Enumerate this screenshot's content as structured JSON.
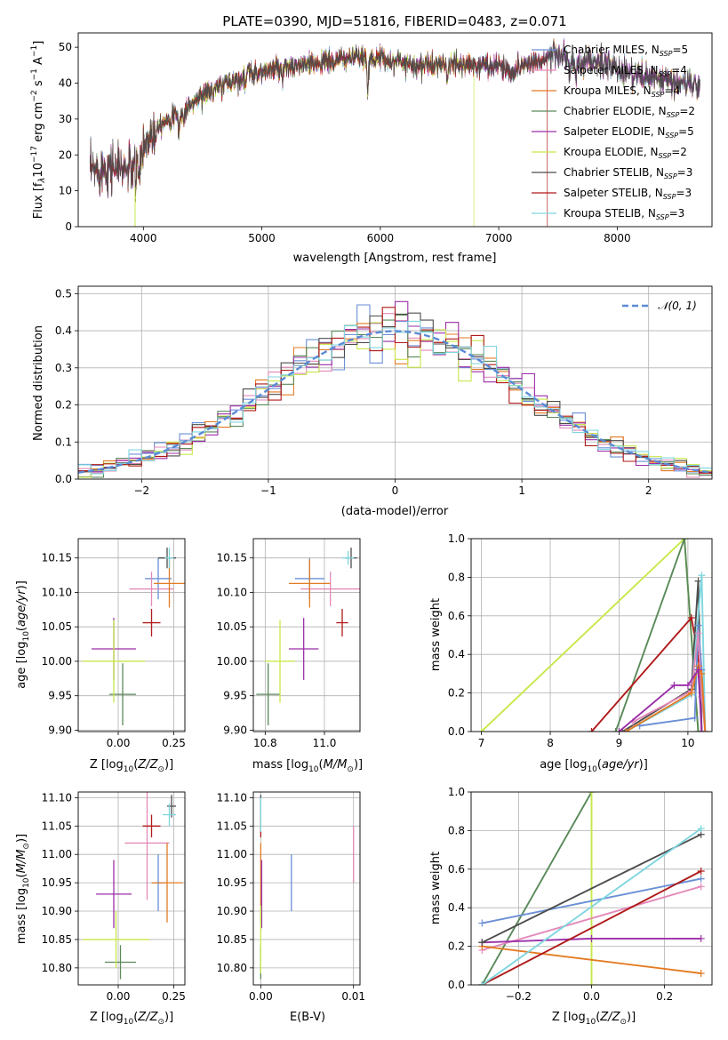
{
  "figure_title": "PLATE=0390, MJD=51816, FIBERID=0483, z=0.071",
  "colors": {
    "chabrier_miles": "#6a8fd6",
    "salpeter_miles": "#e389b9",
    "kroupa_miles": "#e37b22",
    "chabrier_elodie": "#5a8a5a",
    "salpeter_elodie": "#9b2fa8",
    "kroupa_elodie": "#c6e84a",
    "chabrier_stelib": "#4d4d4d",
    "salpeter_stelib": "#b01a1a",
    "kroupa_stelib": "#7fd6df",
    "normal_curve": "#5b8bd6"
  },
  "legend": [
    {
      "key": "chabrier_miles",
      "label": "Chabrier MILES, N",
      "n": "=5"
    },
    {
      "key": "salpeter_miles",
      "label": "Salpeter MILES, N",
      "n": "=4"
    },
    {
      "key": "kroupa_miles",
      "label": "Kroupa MILES, N",
      "n": "=4"
    },
    {
      "key": "chabrier_elodie",
      "label": "Chabrier ELODIE, N",
      "n": "=2"
    },
    {
      "key": "salpeter_elodie",
      "label": "Salpeter ELODIE, N",
      "n": "=5"
    },
    {
      "key": "kroupa_elodie",
      "label": "Kroupa ELODIE, N",
      "n": "=2"
    },
    {
      "key": "chabrier_stelib",
      "label": "Chabrier STELIB, N",
      "n": "=3"
    },
    {
      "key": "salpeter_stelib",
      "label": "Salpeter STELIB, N",
      "n": "=3"
    },
    {
      "key": "kroupa_stelib",
      "label": "Kroupa STELIB, N",
      "n": "=3"
    }
  ],
  "legend_subscript": "SSP",
  "chart_data": [
    {
      "id": "spectrum",
      "type": "line",
      "xlabel": "wavelength [Angstrom, rest frame]",
      "ylabel": "Flux [f_λ 10^-17 erg cm^-2 s^-1 A^-1]",
      "xlim": [
        3450,
        8800
      ],
      "ylim": [
        0,
        54
      ],
      "xticks": [
        4000,
        5000,
        6000,
        7000,
        8000
      ],
      "yticks": [
        0,
        10,
        20,
        30,
        40,
        50
      ],
      "continuum": [
        [
          3550,
          15
        ],
        [
          3700,
          17
        ],
        [
          3850,
          16
        ],
        [
          3950,
          17
        ],
        [
          4000,
          22
        ],
        [
          4100,
          28
        ],
        [
          4200,
          30
        ],
        [
          4300,
          31
        ],
        [
          4400,
          34
        ],
        [
          4500,
          37
        ],
        [
          4600,
          38
        ],
        [
          4700,
          40
        ],
        [
          4800,
          41
        ],
        [
          4900,
          43
        ],
        [
          5000,
          43
        ],
        [
          5100,
          44
        ],
        [
          5200,
          44
        ],
        [
          5300,
          45
        ],
        [
          5400,
          45
        ],
        [
          5500,
          46
        ],
        [
          5600,
          46
        ],
        [
          5700,
          47
        ],
        [
          5800,
          47
        ],
        [
          5900,
          47
        ],
        [
          6000,
          47
        ],
        [
          6100,
          46
        ],
        [
          6200,
          46
        ],
        [
          6300,
          45
        ],
        [
          6400,
          45
        ],
        [
          6500,
          45
        ],
        [
          6600,
          45
        ],
        [
          6700,
          45
        ],
        [
          6800,
          45
        ],
        [
          6900,
          45
        ],
        [
          7000,
          45
        ],
        [
          7100,
          43
        ],
        [
          7200,
          45
        ],
        [
          7300,
          46
        ],
        [
          7400,
          47
        ],
        [
          7500,
          48
        ],
        [
          7600,
          46
        ],
        [
          7700,
          45
        ],
        [
          7800,
          46
        ],
        [
          7900,
          45
        ],
        [
          8000,
          44
        ],
        [
          8100,
          43
        ],
        [
          8200,
          42
        ],
        [
          8300,
          41
        ],
        [
          8400,
          41
        ],
        [
          8500,
          40
        ],
        [
          8600,
          40
        ],
        [
          8700,
          39
        ]
      ],
      "absorption": [
        [
          3934,
          5
        ],
        [
          3969,
          6
        ],
        [
          4102,
          4
        ],
        [
          4300,
          5
        ],
        [
          4340,
          3
        ],
        [
          4861,
          3
        ],
        [
          5175,
          4
        ],
        [
          5270,
          2
        ],
        [
          5893,
          9
        ],
        [
          6563,
          3
        ],
        [
          7600,
          4
        ],
        [
          7650,
          5
        ]
      ],
      "series_end_x": {
        "kroupa_elodie_drop": 6790,
        "salpeter_stelib_drop": 7410
      }
    },
    {
      "id": "residual_histogram",
      "type": "step",
      "xlabel": "(data-model)/error",
      "ylabel": "Normed distribution",
      "xlim": [
        -2.5,
        2.5
      ],
      "ylim": [
        0,
        0.52
      ],
      "xticks": [
        -2,
        -1,
        0,
        1,
        2
      ],
      "yticks": [
        0,
        0.1,
        0.2,
        0.3,
        0.4,
        0.5
      ],
      "bin_width": 0.1,
      "legend_label": "𝒩(0, 1)",
      "legend_position": "top-right"
    },
    {
      "id": "age_vs_Z",
      "type": "scatter",
      "xlabel": "Z [log10(Z/Z☉)]",
      "ylabel": "age [log10(age/yr)]",
      "xlim": [
        -0.18,
        0.3
      ],
      "ylim": [
        9.898,
        10.178
      ],
      "xticks": [
        0,
        0.25
      ],
      "yticks": [
        9.9,
        9.95,
        10.0,
        10.05,
        10.1,
        10.15
      ],
      "points": [
        {
          "key": "chabrier_miles",
          "x": 0.18,
          "y": 10.12,
          "xerr": 0.06,
          "yerr": 0.03
        },
        {
          "key": "salpeter_miles",
          "x": 0.15,
          "y": 10.105,
          "xerr": 0.1,
          "yerr": 0.025
        },
        {
          "key": "kroupa_miles",
          "x": 0.23,
          "y": 10.113,
          "xerr": 0.07,
          "yerr": 0.035
        },
        {
          "key": "chabrier_elodie",
          "x": 0.02,
          "y": 9.952,
          "xerr": 0.06,
          "yerr": 0.045
        },
        {
          "key": "salpeter_elodie",
          "x": -0.02,
          "y": 10.018,
          "xerr": 0.1,
          "yerr": 0.045
        },
        {
          "key": "kroupa_elodie",
          "x": -0.02,
          "y": 10.0,
          "xerr": 0.14,
          "yerr": 0.06
        },
        {
          "key": "chabrier_stelib",
          "x": 0.22,
          "y": 10.15,
          "xerr": 0.04,
          "yerr": 0.015
        },
        {
          "key": "salpeter_stelib",
          "x": 0.15,
          "y": 10.056,
          "xerr": 0.04,
          "yerr": 0.02
        },
        {
          "key": "kroupa_stelib",
          "x": 0.23,
          "y": 10.15,
          "xerr": 0.02,
          "yerr": 0.015
        }
      ]
    },
    {
      "id": "age_vs_mass",
      "type": "scatter",
      "xlabel": "mass [log10(M/M☉)]",
      "ylabel": "",
      "xlim": [
        10.76,
        11.12
      ],
      "ylim": [
        9.898,
        10.178
      ],
      "xticks": [
        10.8,
        11.0
      ],
      "yticks": [
        9.9,
        9.95,
        10.0,
        10.05,
        10.1,
        10.15
      ],
      "points": [
        {
          "key": "chabrier_miles",
          "x": 10.95,
          "y": 10.12,
          "xerr": 0.05,
          "yerr": 0.03
        },
        {
          "key": "salpeter_miles",
          "x": 11.02,
          "y": 10.105,
          "xerr": 0.1,
          "yerr": 0.025
        },
        {
          "key": "kroupa_miles",
          "x": 10.95,
          "y": 10.113,
          "xerr": 0.07,
          "yerr": 0.035
        },
        {
          "key": "chabrier_elodie",
          "x": 10.81,
          "y": 9.952,
          "xerr": 0.04,
          "yerr": 0.045
        },
        {
          "key": "salpeter_elodie",
          "x": 10.93,
          "y": 10.018,
          "xerr": 0.05,
          "yerr": 0.045
        },
        {
          "key": "kroupa_elodie",
          "x": 10.85,
          "y": 10.0,
          "xerr": 0.05,
          "yerr": 0.06
        },
        {
          "key": "chabrier_stelib",
          "x": 11.09,
          "y": 10.15,
          "xerr": 0.02,
          "yerr": 0.015
        },
        {
          "key": "salpeter_stelib",
          "x": 11.06,
          "y": 10.056,
          "xerr": 0.02,
          "yerr": 0.02
        },
        {
          "key": "kroupa_stelib",
          "x": 11.08,
          "y": 10.15,
          "xerr": 0.02,
          "yerr": 0.01
        }
      ]
    },
    {
      "id": "mass_weight_vs_age",
      "type": "line",
      "xlabel": "age  [log10(age/yr)]",
      "ylabel": "mass weight",
      "xlim": [
        6.85,
        10.35
      ],
      "ylim": [
        0,
        1
      ],
      "xticks": [
        7,
        8,
        9,
        10
      ],
      "yticks": [
        0,
        0.2,
        0.4,
        0.6,
        0.8,
        1.0
      ],
      "series": [
        {
          "key": "kroupa_elodie",
          "points": [
            [
              7.0,
              0.0
            ],
            [
              9.95,
              1.0
            ],
            [
              10.15,
              0.0
            ]
          ]
        },
        {
          "key": "chabrier_elodie",
          "points": [
            [
              8.95,
              0.0
            ],
            [
              9.95,
              1.0
            ],
            [
              10.15,
              0.0
            ]
          ]
        },
        {
          "key": "salpeter_stelib",
          "points": [
            [
              8.6,
              0.0
            ],
            [
              10.05,
              0.59
            ],
            [
              10.15,
              0.4
            ],
            [
              10.2,
              0.0
            ]
          ]
        },
        {
          "key": "chabrier_stelib",
          "points": [
            [
              9.05,
              0.0
            ],
            [
              10.05,
              0.22
            ],
            [
              10.15,
              0.78
            ],
            [
              10.2,
              0.0
            ]
          ]
        },
        {
          "key": "kroupa_stelib",
          "points": [
            [
              9.1,
              0.0
            ],
            [
              10.05,
              0.19
            ],
            [
              10.2,
              0.81
            ],
            [
              10.25,
              0.0
            ]
          ]
        },
        {
          "key": "chabrier_miles",
          "points": [
            [
              9.3,
              0.03
            ],
            [
              10.1,
              0.07
            ],
            [
              10.15,
              0.55
            ],
            [
              10.2,
              0.32
            ],
            [
              10.25,
              0.0
            ]
          ]
        },
        {
          "key": "salpeter_miles",
          "points": [
            [
              9.2,
              0.05
            ],
            [
              10.05,
              0.21
            ],
            [
              10.15,
              0.51
            ],
            [
              10.2,
              0.18
            ],
            [
              10.25,
              0.0
            ]
          ]
        },
        {
          "key": "kroupa_miles",
          "points": [
            [
              9.1,
              0.0
            ],
            [
              10.05,
              0.2
            ],
            [
              10.15,
              0.34
            ],
            [
              10.2,
              0.3
            ],
            [
              10.25,
              0.0
            ]
          ]
        },
        {
          "key": "salpeter_elodie",
          "points": [
            [
              9.0,
              0.0
            ],
            [
              9.8,
              0.24
            ],
            [
              10.0,
              0.24
            ],
            [
              10.15,
              0.32
            ],
            [
              10.2,
              0.0
            ]
          ]
        }
      ]
    },
    {
      "id": "mass_vs_Z",
      "type": "scatter",
      "xlabel": "Z [log10(Z/Z☉)]",
      "ylabel": "mass [log10(M/M☉)]",
      "xlim": [
        -0.18,
        0.3
      ],
      "ylim": [
        10.77,
        11.11
      ],
      "xticks": [
        0,
        0.25
      ],
      "yticks": [
        10.8,
        10.85,
        10.9,
        10.95,
        11.0,
        11.05,
        11.1
      ],
      "points": [
        {
          "key": "chabrier_miles",
          "x": 0.18,
          "y": 10.95,
          "xerr": 0.03,
          "yerr": 0.05
        },
        {
          "key": "salpeter_miles",
          "x": 0.13,
          "y": 11.02,
          "xerr": 0.1,
          "yerr": 0.1
        },
        {
          "key": "kroupa_miles",
          "x": 0.22,
          "y": 10.95,
          "xerr": 0.07,
          "yerr": 0.07
        },
        {
          "key": "chabrier_elodie",
          "x": 0.01,
          "y": 10.81,
          "xerr": 0.07,
          "yerr": 0.03
        },
        {
          "key": "salpeter_elodie",
          "x": -0.02,
          "y": 10.93,
          "xerr": 0.08,
          "yerr": 0.06
        },
        {
          "key": "kroupa_elodie",
          "x": -0.01,
          "y": 10.85,
          "xerr": 0.15,
          "yerr": 0.05
        },
        {
          "key": "chabrier_stelib",
          "x": 0.24,
          "y": 11.085,
          "xerr": 0.02,
          "yerr": 0.02
        },
        {
          "key": "salpeter_stelib",
          "x": 0.15,
          "y": 11.05,
          "xerr": 0.04,
          "yerr": 0.02
        },
        {
          "key": "kroupa_stelib",
          "x": 0.23,
          "y": 11.07,
          "xerr": 0.03,
          "yerr": 0.02
        }
      ]
    },
    {
      "id": "mass_vs_ebv",
      "type": "scatter",
      "xlabel": "E(B-V)",
      "ylabel": "",
      "xlim": [
        -0.0008,
        0.0107
      ],
      "ylim": [
        10.77,
        11.11
      ],
      "xticks": [
        0.0,
        0.01
      ],
      "xtick_labels": [
        "0.00",
        "0.01"
      ],
      "yticks": [
        10.8,
        10.85,
        10.9,
        10.95,
        11.0,
        11.05,
        11.1
      ],
      "points": [
        {
          "key": "chabrier_miles",
          "x": 0.0033,
          "y": 10.95,
          "xerr": 0,
          "yerr": 0.05
        },
        {
          "key": "salpeter_miles",
          "x": 0.01,
          "y": 11.0,
          "xerr": 0,
          "yerr": 0.05
        },
        {
          "key": "kroupa_miles",
          "x": 0.0,
          "y": 10.95,
          "xerr": 0,
          "yerr": 0.07
        },
        {
          "key": "chabrier_elodie",
          "x": 0.0,
          "y": 10.81,
          "xerr": 0,
          "yerr": 0.03
        },
        {
          "key": "salpeter_elodie",
          "x": 0.0001,
          "y": 10.93,
          "xerr": 0,
          "yerr": 0.06
        },
        {
          "key": "kroupa_elodie",
          "x": 0.0,
          "y": 10.85,
          "xerr": 0,
          "yerr": 0.06
        },
        {
          "key": "chabrier_stelib",
          "x": 0.0,
          "y": 11.085,
          "xerr": 0,
          "yerr": 0.02
        },
        {
          "key": "salpeter_stelib",
          "x": 0.0,
          "y": 11.05,
          "xerr": 0,
          "yerr": 0.02
        },
        {
          "key": "kroupa_stelib",
          "x": 0.0,
          "y": 11.07,
          "xerr": 0,
          "yerr": 0.03
        }
      ]
    },
    {
      "id": "mass_weight_vs_Z",
      "type": "line",
      "xlabel": "Z [log10(Z/Z☉)]",
      "ylabel": "mass weight",
      "xlim": [
        -0.33,
        0.33
      ],
      "ylim": [
        0,
        1
      ],
      "xticks": [
        -0.2,
        0,
        0.2
      ],
      "yticks": [
        0,
        0.2,
        0.4,
        0.6,
        0.8,
        1.0
      ],
      "series": [
        {
          "key": "chabrier_elodie",
          "points": [
            [
              -0.3,
              0.0
            ],
            [
              0.0,
              1.0
            ]
          ]
        },
        {
          "key": "kroupa_elodie",
          "points": [
            [
              0.0,
              0.0
            ],
            [
              0.0,
              1.0
            ]
          ]
        },
        {
          "key": "chabrier_miles",
          "points": [
            [
              -0.3,
              0.32
            ],
            [
              0.3,
              0.55
            ]
          ]
        },
        {
          "key": "salpeter_miles",
          "points": [
            [
              -0.3,
              0.18
            ],
            [
              0.3,
              0.51
            ]
          ]
        },
        {
          "key": "kroupa_miles",
          "points": [
            [
              -0.3,
              0.2
            ],
            [
              0.3,
              0.06
            ]
          ]
        },
        {
          "key": "salpeter_elodie",
          "points": [
            [
              -0.3,
              0.22
            ],
            [
              0.0,
              0.24
            ],
            [
              0.3,
              0.24
            ]
          ]
        },
        {
          "key": "chabrier_stelib",
          "points": [
            [
              -0.3,
              0.22
            ],
            [
              0.3,
              0.78
            ]
          ]
        },
        {
          "key": "salpeter_stelib",
          "points": [
            [
              -0.3,
              0.0
            ],
            [
              0.3,
              0.59
            ]
          ]
        },
        {
          "key": "kroupa_stelib",
          "points": [
            [
              -0.3,
              0.0
            ],
            [
              0.3,
              0.81
            ]
          ]
        }
      ]
    }
  ]
}
